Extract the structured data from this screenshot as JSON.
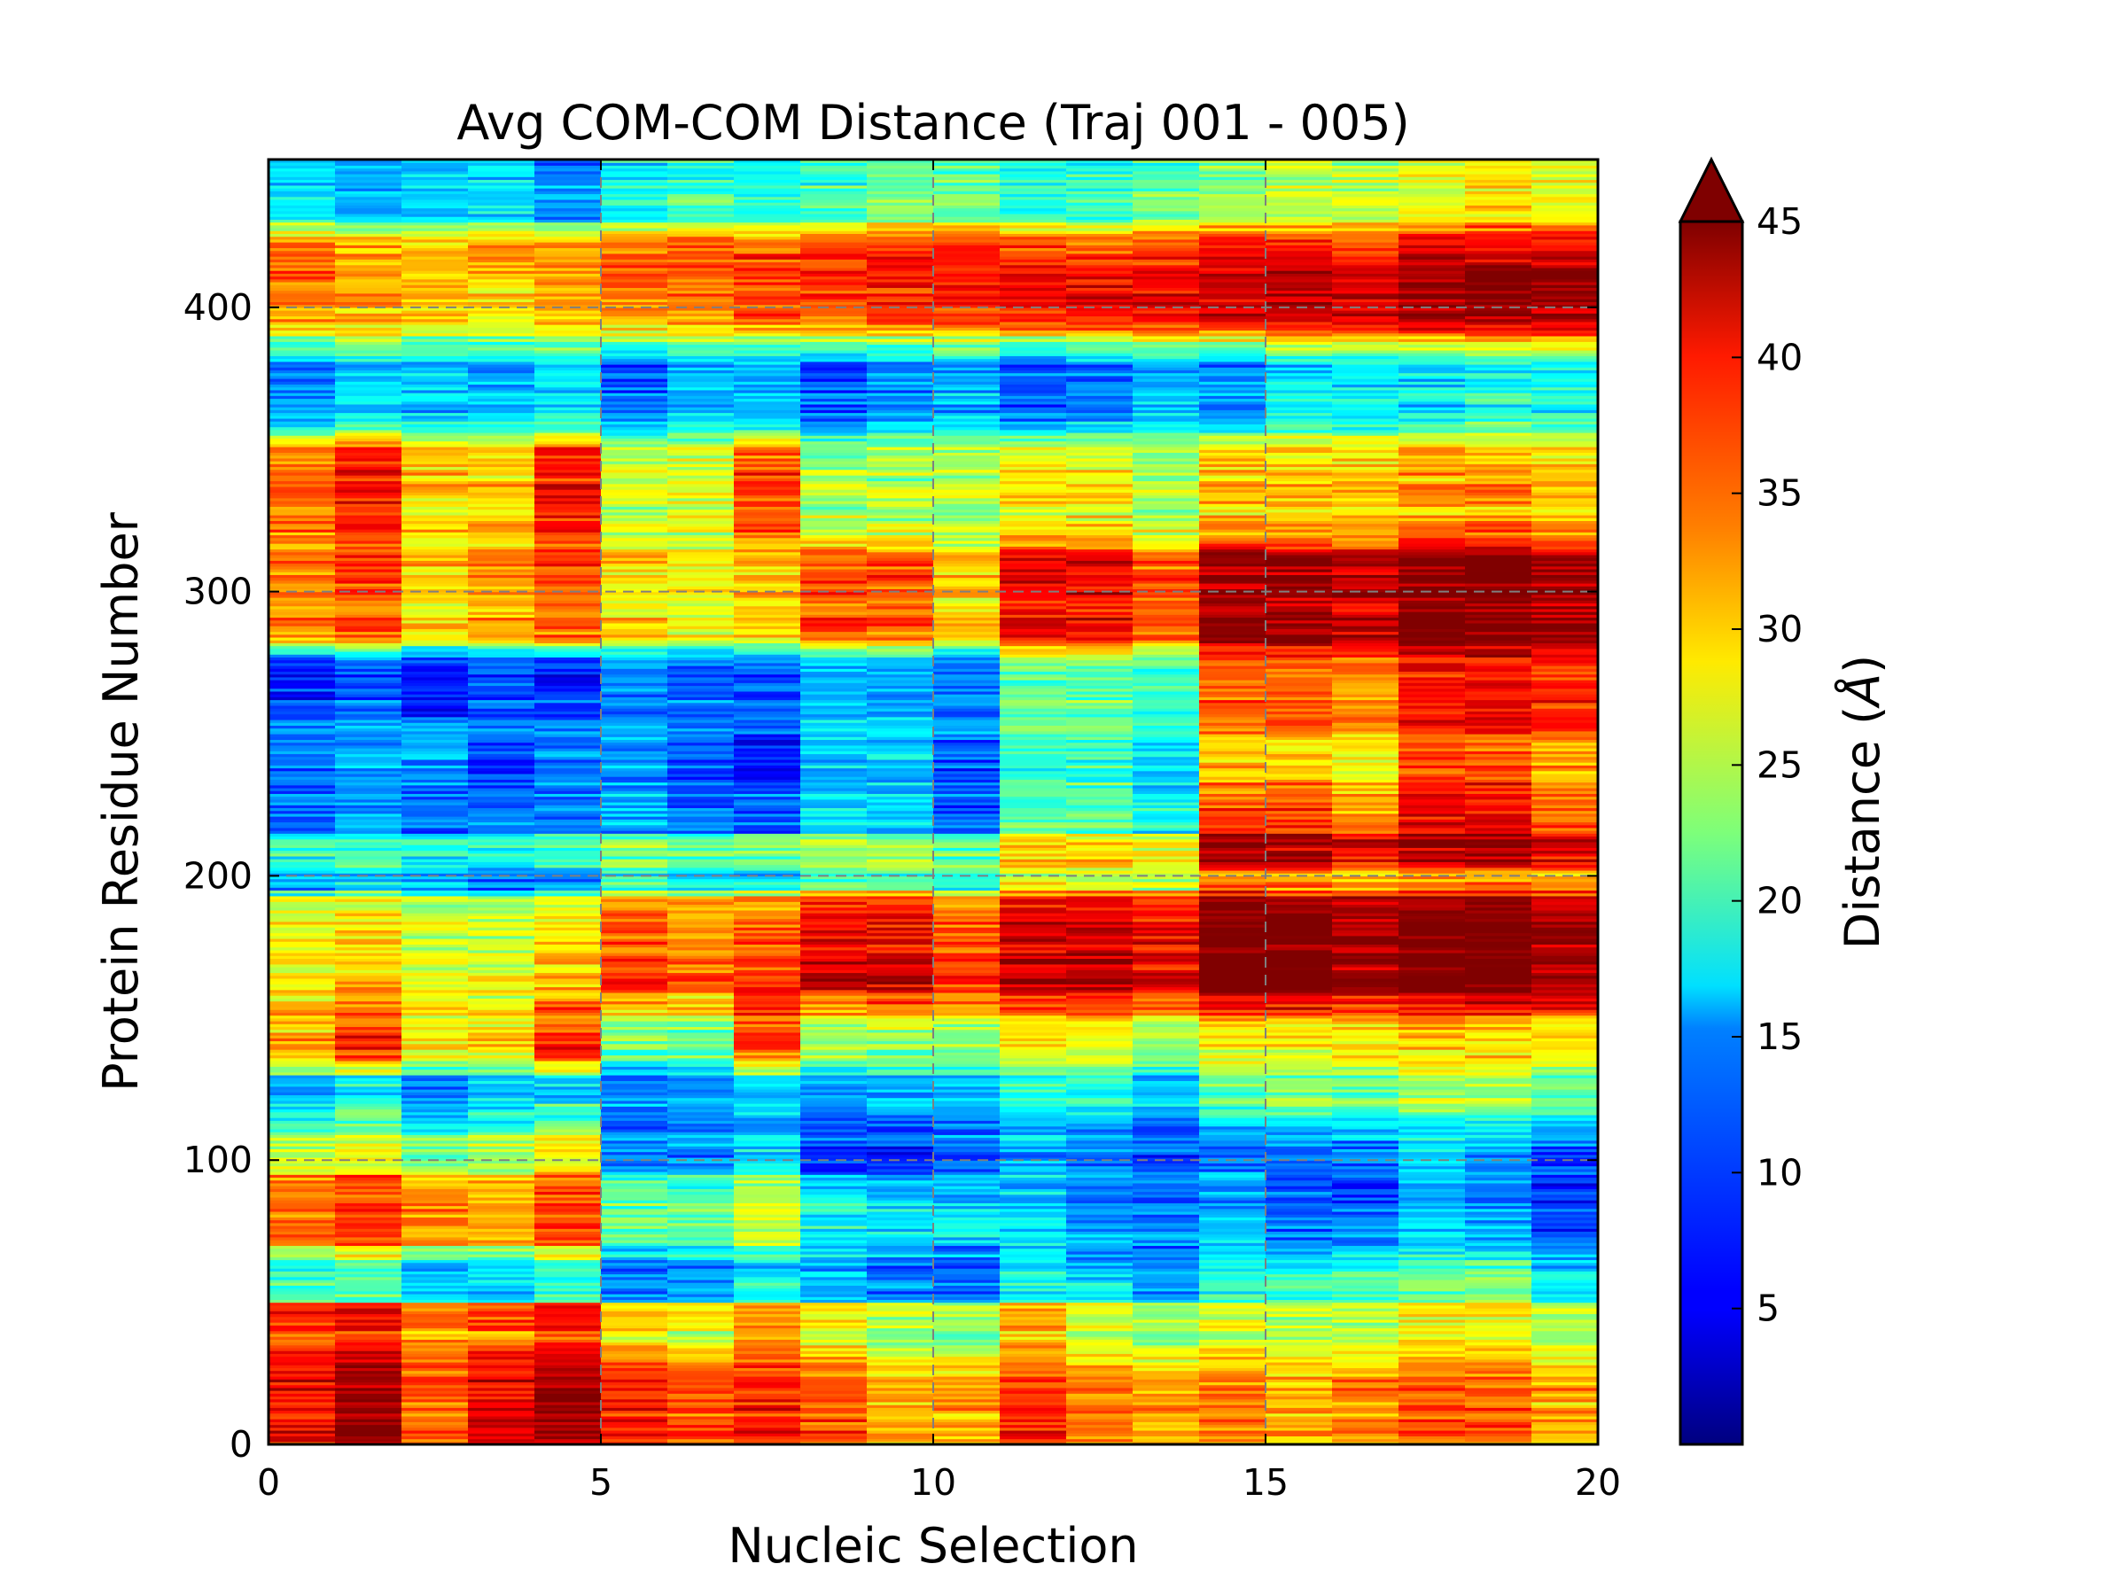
{
  "chart_data": {
    "type": "heatmap",
    "title": "Avg COM-COM Distance (Traj 001 - 005)",
    "xlabel": "Nucleic Selection",
    "ylabel": "Protein Residue Number",
    "xlim": [
      0,
      20
    ],
    "ylim": [
      0,
      452
    ],
    "x_ticks": [
      "0",
      "5",
      "10",
      "15",
      "20"
    ],
    "y_ticks": [
      "0",
      "100",
      "200",
      "300",
      "400"
    ],
    "grid": "dashed gray at major ticks",
    "colormap": "jet",
    "colorbar": {
      "label": "Distance (Å)",
      "label_text": "Distance (",
      "label_unit": "Å",
      "label_close": ")",
      "range": [
        0,
        45
      ],
      "ticks": [
        "5",
        "10",
        "15",
        "20",
        "25",
        "30",
        "35",
        "40",
        "45"
      ],
      "extend": "max"
    },
    "columns": 20,
    "column_shift_zones": [
      [
        0,
        5
      ],
      [
        5,
        8
      ],
      [
        8,
        11
      ],
      [
        11,
        14
      ],
      [
        14,
        17
      ],
      [
        17,
        20
      ]
    ],
    "approx_column_means_profile": {
      "description_note": "",
      "bands": [
        {
          "residues": [
            0,
            20
          ],
          "values": [
            40,
            44,
            36,
            40,
            44,
            38,
            36,
            38,
            36,
            32,
            32,
            38,
            34,
            32,
            34,
            32,
            34,
            36,
            36,
            32
          ]
        },
        {
          "residues": [
            40,
            50
          ],
          "values": [
            41,
            43,
            38,
            40,
            43,
            34,
            30,
            36,
            30,
            26,
            26,
            34,
            28,
            26,
            28,
            26,
            26,
            30,
            30,
            26
          ]
        },
        {
          "residues": [
            50,
            65
          ],
          "values": [
            16,
            18,
            12,
            12,
            16,
            8,
            10,
            14,
            12,
            10,
            8,
            16,
            14,
            10,
            18,
            18,
            20,
            22,
            22,
            16
          ]
        },
        {
          "residues": [
            70,
            95
          ],
          "values": [
            36,
            38,
            34,
            34,
            38,
            22,
            22,
            26,
            18,
            16,
            16,
            16,
            12,
            12,
            14,
            10,
            10,
            14,
            12,
            8
          ]
        },
        {
          "residues": [
            95,
            105
          ],
          "values": [
            24,
            26,
            20,
            22,
            26,
            10,
            10,
            14,
            6,
            6,
            8,
            12,
            10,
            8,
            10,
            10,
            10,
            14,
            12,
            8
          ]
        },
        {
          "residues": [
            120,
            130
          ],
          "values": [
            12,
            16,
            10,
            14,
            14,
            10,
            12,
            12,
            12,
            14,
            14,
            18,
            18,
            14,
            22,
            22,
            22,
            24,
            24,
            22
          ]
        },
        {
          "residues": [
            135,
            145
          ],
          "values": [
            34,
            40,
            30,
            30,
            40,
            22,
            22,
            38,
            24,
            24,
            24,
            28,
            28,
            24,
            28,
            28,
            28,
            30,
            30,
            28
          ]
        },
        {
          "residues": [
            160,
            195
          ],
          "values": [
            28,
            30,
            26,
            26,
            30,
            36,
            34,
            36,
            40,
            40,
            36,
            42,
            42,
            40,
            46,
            46,
            44,
            46,
            46,
            44
          ]
        },
        {
          "residues": [
            195,
            200
          ],
          "values": [
            10,
            12,
            10,
            8,
            8,
            16,
            14,
            12,
            18,
            18,
            16,
            24,
            24,
            22,
            30,
            30,
            28,
            30,
            30,
            30
          ]
        },
        {
          "residues": [
            205,
            215
          ],
          "values": [
            20,
            22,
            18,
            20,
            22,
            24,
            22,
            24,
            24,
            24,
            22,
            30,
            30,
            28,
            44,
            44,
            42,
            44,
            46,
            42
          ]
        },
        {
          "residues": [
            215,
            225
          ],
          "values": [
            10,
            12,
            10,
            10,
            10,
            12,
            10,
            8,
            14,
            14,
            8,
            20,
            20,
            16,
            36,
            36,
            32,
            40,
            40,
            36
          ]
        },
        {
          "residues": [
            240,
            250
          ],
          "values": [
            12,
            14,
            14,
            10,
            12,
            14,
            10,
            8,
            16,
            16,
            10,
            20,
            20,
            16,
            30,
            30,
            28,
            36,
            36,
            32
          ]
        },
        {
          "residues": [
            255,
            265
          ],
          "values": [
            8,
            10,
            8,
            10,
            8,
            12,
            10,
            10,
            14,
            14,
            12,
            22,
            22,
            20,
            36,
            36,
            34,
            40,
            40,
            38
          ]
        },
        {
          "residues": [
            295,
            305
          ],
          "values": [
            34,
            36,
            30,
            32,
            36,
            30,
            28,
            30,
            36,
            36,
            30,
            40,
            40,
            36,
            44,
            44,
            42,
            46,
            46,
            44
          ]
        },
        {
          "residues": [
            330,
            340
          ],
          "values": [
            34,
            38,
            30,
            30,
            38,
            26,
            26,
            36,
            24,
            24,
            24,
            28,
            28,
            24,
            30,
            30,
            30,
            32,
            32,
            30
          ]
        },
        {
          "residues": [
            370,
            380
          ],
          "values": [
            12,
            16,
            14,
            14,
            16,
            10,
            14,
            14,
            10,
            12,
            14,
            10,
            12,
            14,
            12,
            16,
            16,
            16,
            18,
            18
          ]
        },
        {
          "residues": [
            398,
            412
          ],
          "values": [
            34,
            32,
            30,
            30,
            32,
            34,
            34,
            36,
            36,
            38,
            38,
            40,
            40,
            40,
            42,
            42,
            42,
            44,
            46,
            44
          ]
        },
        {
          "residues": [
            415,
            425
          ],
          "values": [
            36,
            34,
            32,
            34,
            34,
            36,
            38,
            38,
            38,
            40,
            40,
            38,
            36,
            38,
            40,
            40,
            38,
            42,
            42,
            42
          ]
        },
        {
          "residues": [
            430,
            440
          ],
          "values": [
            14,
            12,
            14,
            14,
            10,
            16,
            18,
            16,
            18,
            20,
            20,
            16,
            18,
            20,
            22,
            24,
            24,
            26,
            28,
            26
          ]
        }
      ]
    }
  }
}
